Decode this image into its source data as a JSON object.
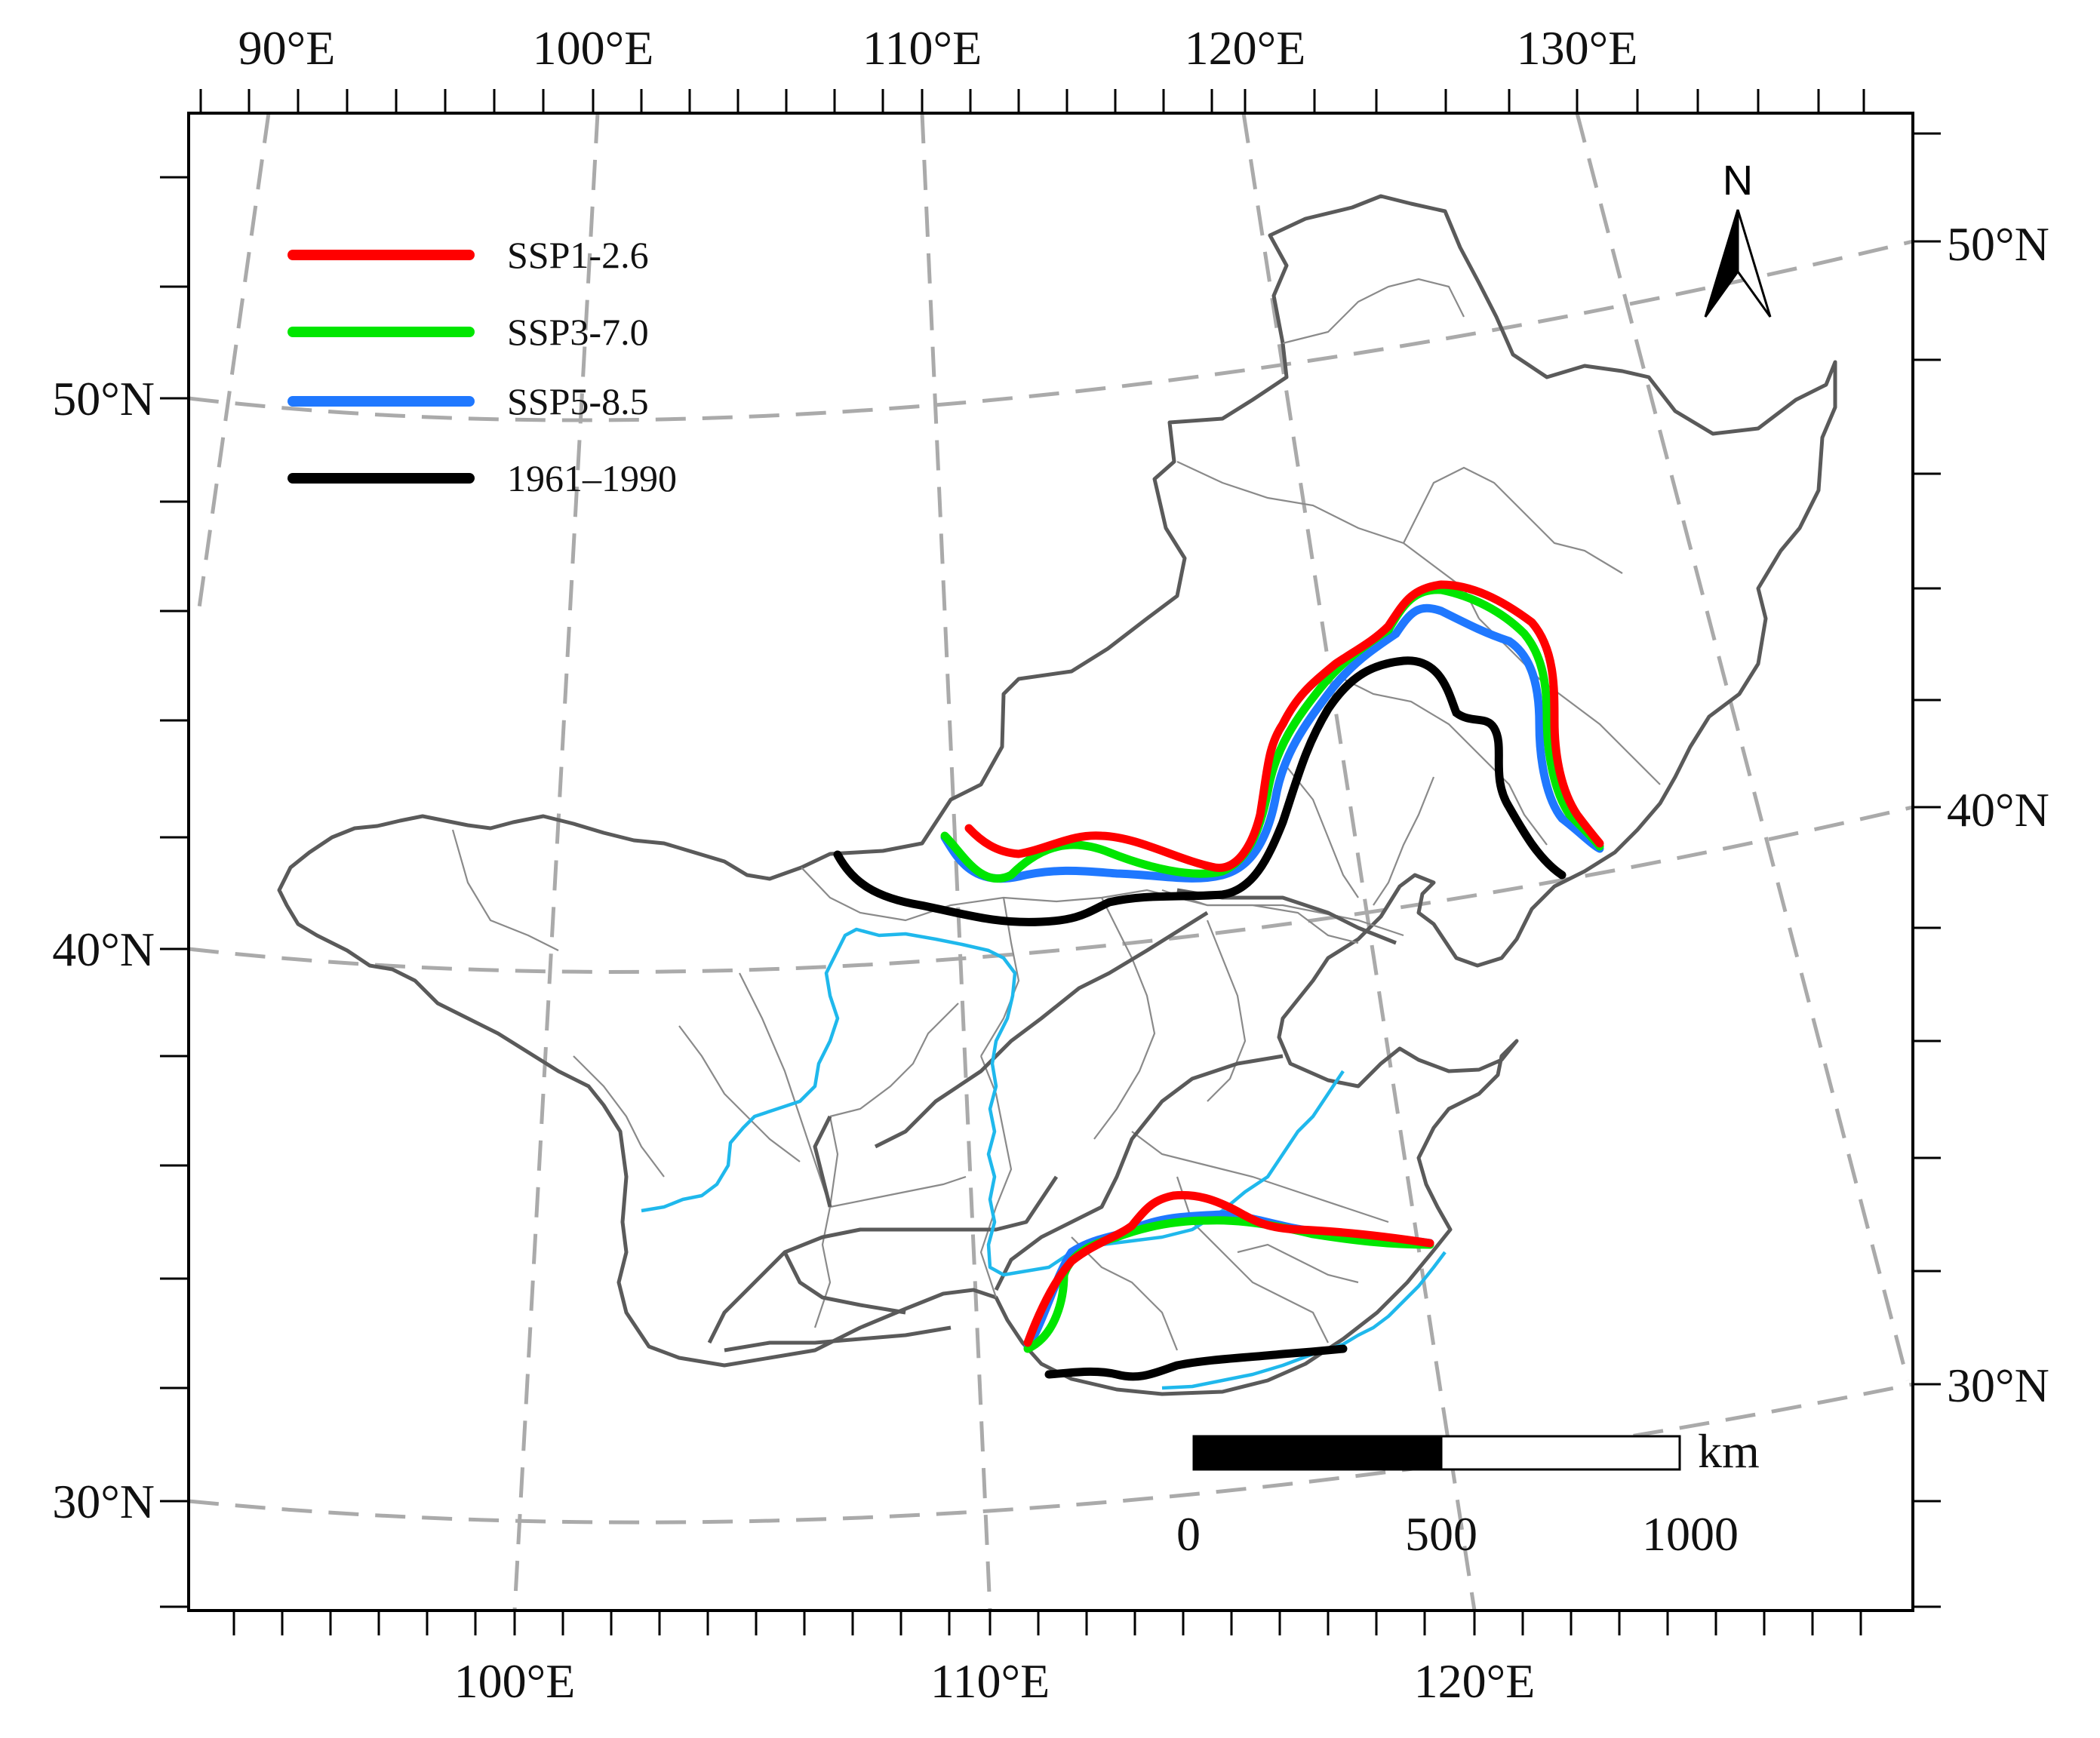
{
  "top_lon_labels": [
    "90°E",
    "100°E",
    "110°E",
    "120°E",
    "130°E"
  ],
  "bottom_lon_labels": [
    "100°E",
    "110°E",
    "120°E"
  ],
  "left_lat_labels": [
    "50°N",
    "40°N",
    "30°N"
  ],
  "right_lat_labels": [
    "50°N",
    "40°N",
    "30°N"
  ],
  "north_arrow": {
    "label": "N",
    "icon": "north-arrow-icon"
  },
  "legend": [
    {
      "label": "SSP1-2.6",
      "color": "#ff0000"
    },
    {
      "label": "SSP3-7.0",
      "color": "#00e600"
    },
    {
      "label": "SSP5-8.5",
      "color": "#1f78ff"
    },
    {
      "label": "1961–1990",
      "color": "#000000"
    }
  ],
  "scale_bar": {
    "unit": "km",
    "ticks": [
      "0",
      "500",
      "1000"
    ]
  },
  "colors": {
    "river": "#1fb8ec",
    "border": "#5a5a5a",
    "graticule": "#aaaaaa"
  }
}
